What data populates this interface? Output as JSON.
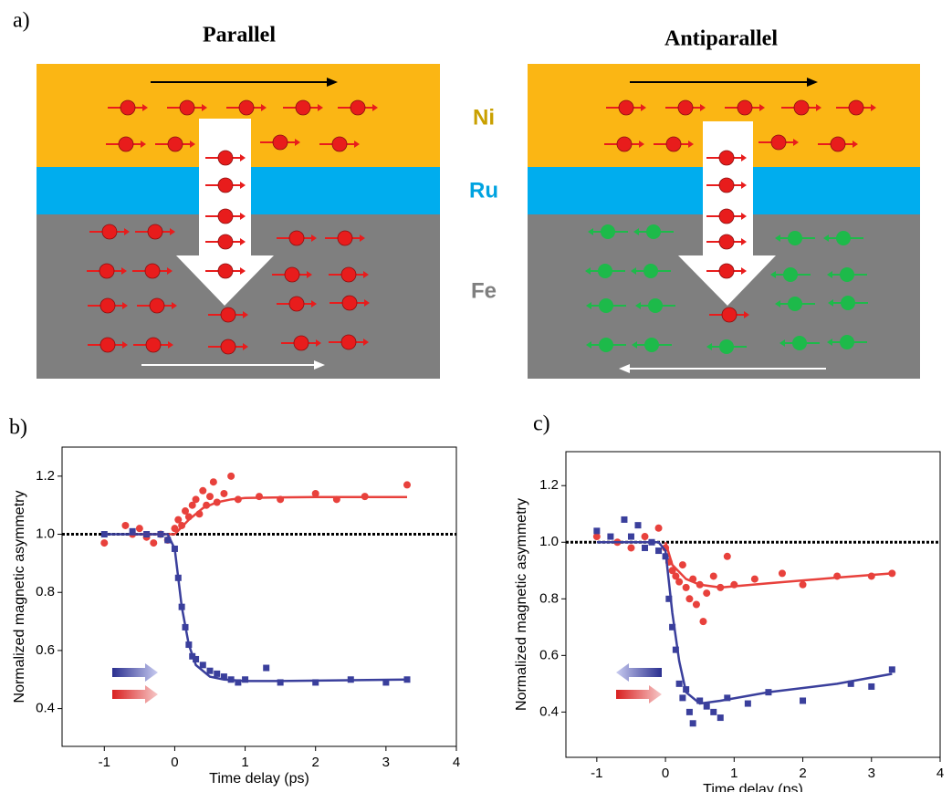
{
  "diagram": {
    "panel_label": "a)",
    "left_title": "Parallel",
    "right_title": "Antiparallel",
    "layers": [
      "Ni",
      "Ru",
      "Fe"
    ]
  },
  "chart_data": [
    {
      "type": "scatter",
      "panel_label": "b)",
      "xlabel": "Time delay (ps)",
      "ylabel": "Normalized magnetic asymmetry",
      "xlim": [
        -1.6,
        4
      ],
      "ylim": [
        0.27,
        1.3
      ],
      "xticks": [
        -1,
        0,
        1,
        2,
        3,
        4
      ],
      "yticks": [
        0.4,
        0.6,
        0.8,
        {
          "value": 1,
          "label": "1.0"
        },
        1.2
      ],
      "reference_line": {
        "y": 1,
        "style": "dashed",
        "color": "#000000"
      },
      "series": [
        {
          "marker": "circle",
          "color": "#e8413c",
          "x": [
            -1,
            -0.7,
            -0.6,
            -0.5,
            -0.4,
            -0.3,
            -0.2,
            -0.1,
            0,
            0.05,
            0.1,
            0.15,
            0.2,
            0.25,
            0.3,
            0.35,
            0.4,
            0.45,
            0.5,
            0.55,
            0.6,
            0.7,
            0.8,
            0.9,
            1.2,
            1.5,
            2,
            2.3,
            2.7,
            3.3
          ],
          "values": [
            0.97,
            1.03,
            1.0,
            1.02,
            0.99,
            0.97,
            1.0,
            0.98,
            1.02,
            1.05,
            1.03,
            1.08,
            1.06,
            1.1,
            1.12,
            1.07,
            1.15,
            1.1,
            1.13,
            1.18,
            1.11,
            1.14,
            1.2,
            1.12,
            1.13,
            1.12,
            1.14,
            1.12,
            1.13,
            1.17
          ]
        },
        {
          "marker": "square",
          "color": "#3a3f9c",
          "x": [
            -1,
            -0.6,
            -0.4,
            -0.2,
            -0.1,
            0,
            0.05,
            0.1,
            0.15,
            0.2,
            0.25,
            0.3,
            0.4,
            0.5,
            0.6,
            0.7,
            0.8,
            0.9,
            1.0,
            1.3,
            1.5,
            2,
            2.5,
            3,
            3.3
          ],
          "values": [
            1.0,
            1.01,
            1.0,
            1.0,
            0.98,
            0.95,
            0.85,
            0.75,
            0.68,
            0.62,
            0.58,
            0.57,
            0.55,
            0.53,
            0.52,
            0.51,
            0.5,
            0.49,
            0.5,
            0.54,
            0.49,
            0.49,
            0.5,
            0.49,
            0.5
          ]
        },
        {
          "marker": "line",
          "color": "#e8413c",
          "x": [
            -0.6,
            0,
            0.2,
            0.4,
            0.6,
            0.8,
            1,
            1.5,
            2,
            3.3
          ],
          "values": [
            1.0,
            1.0,
            1.05,
            1.09,
            1.11,
            1.12,
            1.125,
            1.127,
            1.128,
            1.128
          ]
        },
        {
          "marker": "line",
          "color": "#3a3f9c",
          "x": [
            -1,
            -0.1,
            0,
            0.1,
            0.2,
            0.3,
            0.5,
            0.7,
            1,
            1.5,
            3.3
          ],
          "values": [
            1.0,
            1.0,
            0.95,
            0.75,
            0.62,
            0.55,
            0.51,
            0.5,
            0.495,
            0.495,
            0.5
          ]
        }
      ]
    },
    {
      "type": "scatter",
      "panel_label": "c)",
      "xlabel": "Time delay (ps)",
      "ylabel": "Normalized magnetic asymmetry",
      "xlim": [
        -1.45,
        4
      ],
      "ylim": [
        0.24,
        1.32
      ],
      "xticks": [
        -1,
        0,
        1,
        2,
        3,
        4
      ],
      "yticks": [
        0.4,
        0.6,
        0.8,
        {
          "value": 1,
          "label": "1.0"
        },
        1.2
      ],
      "reference_line": {
        "y": 1,
        "style": "dashed",
        "color": "#000000"
      },
      "series": [
        {
          "marker": "circle",
          "color": "#e8413c",
          "x": [
            -1,
            -0.7,
            -0.5,
            -0.3,
            -0.1,
            0,
            0.05,
            0.1,
            0.15,
            0.2,
            0.25,
            0.3,
            0.35,
            0.4,
            0.45,
            0.5,
            0.55,
            0.6,
            0.7,
            0.8,
            0.9,
            1.0,
            1.3,
            1.7,
            2.0,
            2.5,
            3.0,
            3.3
          ],
          "values": [
            1.02,
            1.0,
            0.98,
            1.02,
            1.05,
            0.98,
            0.93,
            0.9,
            0.88,
            0.86,
            0.92,
            0.84,
            0.8,
            0.87,
            0.78,
            0.85,
            0.72,
            0.82,
            0.88,
            0.84,
            0.95,
            0.85,
            0.87,
            0.89,
            0.85,
            0.88,
            0.88,
            0.89
          ]
        },
        {
          "marker": "square",
          "color": "#3a3f9c",
          "x": [
            -1,
            -0.8,
            -0.6,
            -0.5,
            -0.4,
            -0.3,
            -0.2,
            -0.1,
            0,
            0.05,
            0.1,
            0.15,
            0.2,
            0.25,
            0.3,
            0.35,
            0.4,
            0.5,
            0.6,
            0.7,
            0.8,
            0.9,
            1.2,
            1.5,
            2.0,
            2.7,
            3.0,
            3.3
          ],
          "values": [
            1.04,
            1.02,
            1.08,
            1.02,
            1.06,
            0.98,
            1.0,
            0.97,
            0.95,
            0.8,
            0.7,
            0.62,
            0.5,
            0.45,
            0.48,
            0.4,
            0.36,
            0.44,
            0.42,
            0.4,
            0.38,
            0.45,
            0.43,
            0.47,
            0.44,
            0.5,
            0.49,
            0.55
          ]
        },
        {
          "marker": "line",
          "color": "#e8413c",
          "x": [
            0,
            0.1,
            0.3,
            0.5,
            0.8,
            1.5,
            2.5,
            3.3
          ],
          "values": [
            1.0,
            0.92,
            0.87,
            0.85,
            0.84,
            0.855,
            0.875,
            0.89
          ]
        },
        {
          "marker": "line",
          "color": "#3a3f9c",
          "x": [
            -1,
            -0.1,
            0,
            0.1,
            0.2,
            0.3,
            0.5,
            0.8,
            1.5,
            2.5,
            3.3
          ],
          "values": [
            1.0,
            1.0,
            0.97,
            0.75,
            0.58,
            0.47,
            0.43,
            0.44,
            0.47,
            0.5,
            0.535
          ]
        }
      ]
    }
  ]
}
